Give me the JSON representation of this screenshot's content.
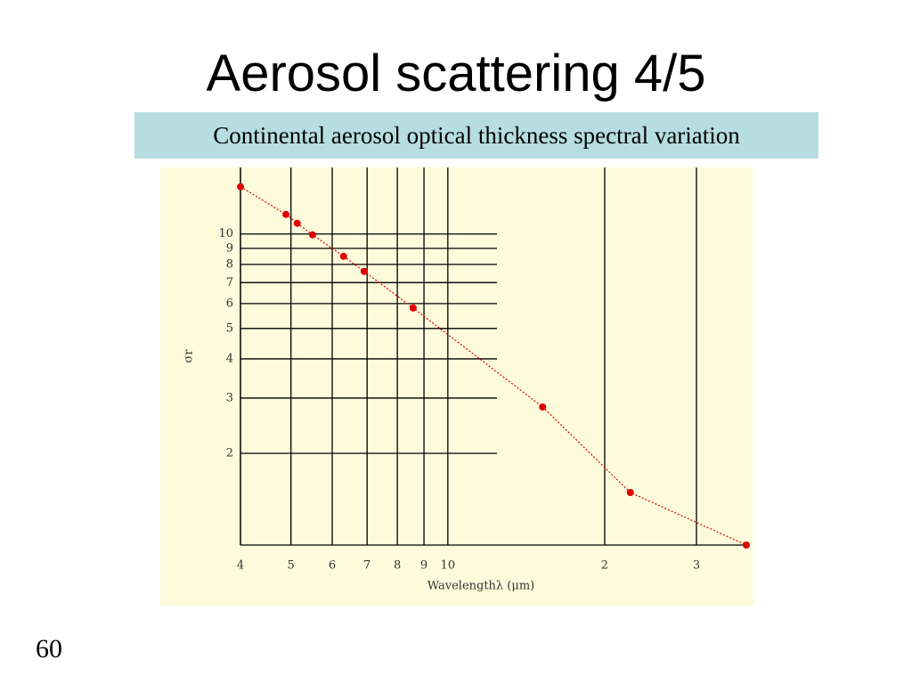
{
  "title": "Aerosol scattering 4/5",
  "caption": "Continental aerosol optical thickness spectral variation",
  "page_number": "60",
  "chart_data": {
    "type": "line",
    "markers": true,
    "line_style": "dotted",
    "x_label": "Wavelengthλ (μm)",
    "y_label": "σr",
    "xscale": "log",
    "yscale": "log",
    "grid": true,
    "x": [
      0.4,
      0.489,
      0.514,
      0.55,
      0.631,
      0.691,
      0.858,
      1.52,
      2.24,
      3.74
    ],
    "values": [
      0.1415,
      0.1155,
      0.1082,
      0.0994,
      0.0849,
      0.076,
      0.0581,
      0.0281,
      0.015,
      0.0102
    ],
    "color": "#e00000",
    "xlim": [
      0.4,
      3.74
    ],
    "ylim": [
      0.0102,
      0.163
    ],
    "xticks": [
      {
        "value": 0.4,
        "label": "4"
      },
      {
        "value": 0.5,
        "label": "5"
      },
      {
        "value": 0.6,
        "label": "6"
      },
      {
        "value": 0.7,
        "label": "7"
      },
      {
        "value": 0.8,
        "label": "8"
      },
      {
        "value": 0.9,
        "label": "9"
      },
      {
        "value": 1,
        "label": "10"
      },
      2,
      3
    ],
    "yticks": [
      {
        "value": 0.02,
        "label": "2"
      },
      {
        "value": 0.03,
        "label": "3"
      },
      {
        "value": 0.04,
        "label": "4"
      },
      {
        "value": 0.05,
        "label": "5"
      },
      {
        "value": 0.06,
        "label": "6"
      },
      {
        "value": 0.07,
        "label": "7"
      },
      {
        "value": 0.08,
        "label": "8"
      },
      {
        "value": 0.09,
        "label": "9"
      },
      {
        "value": 0.1,
        "label": "10"
      }
    ]
  }
}
